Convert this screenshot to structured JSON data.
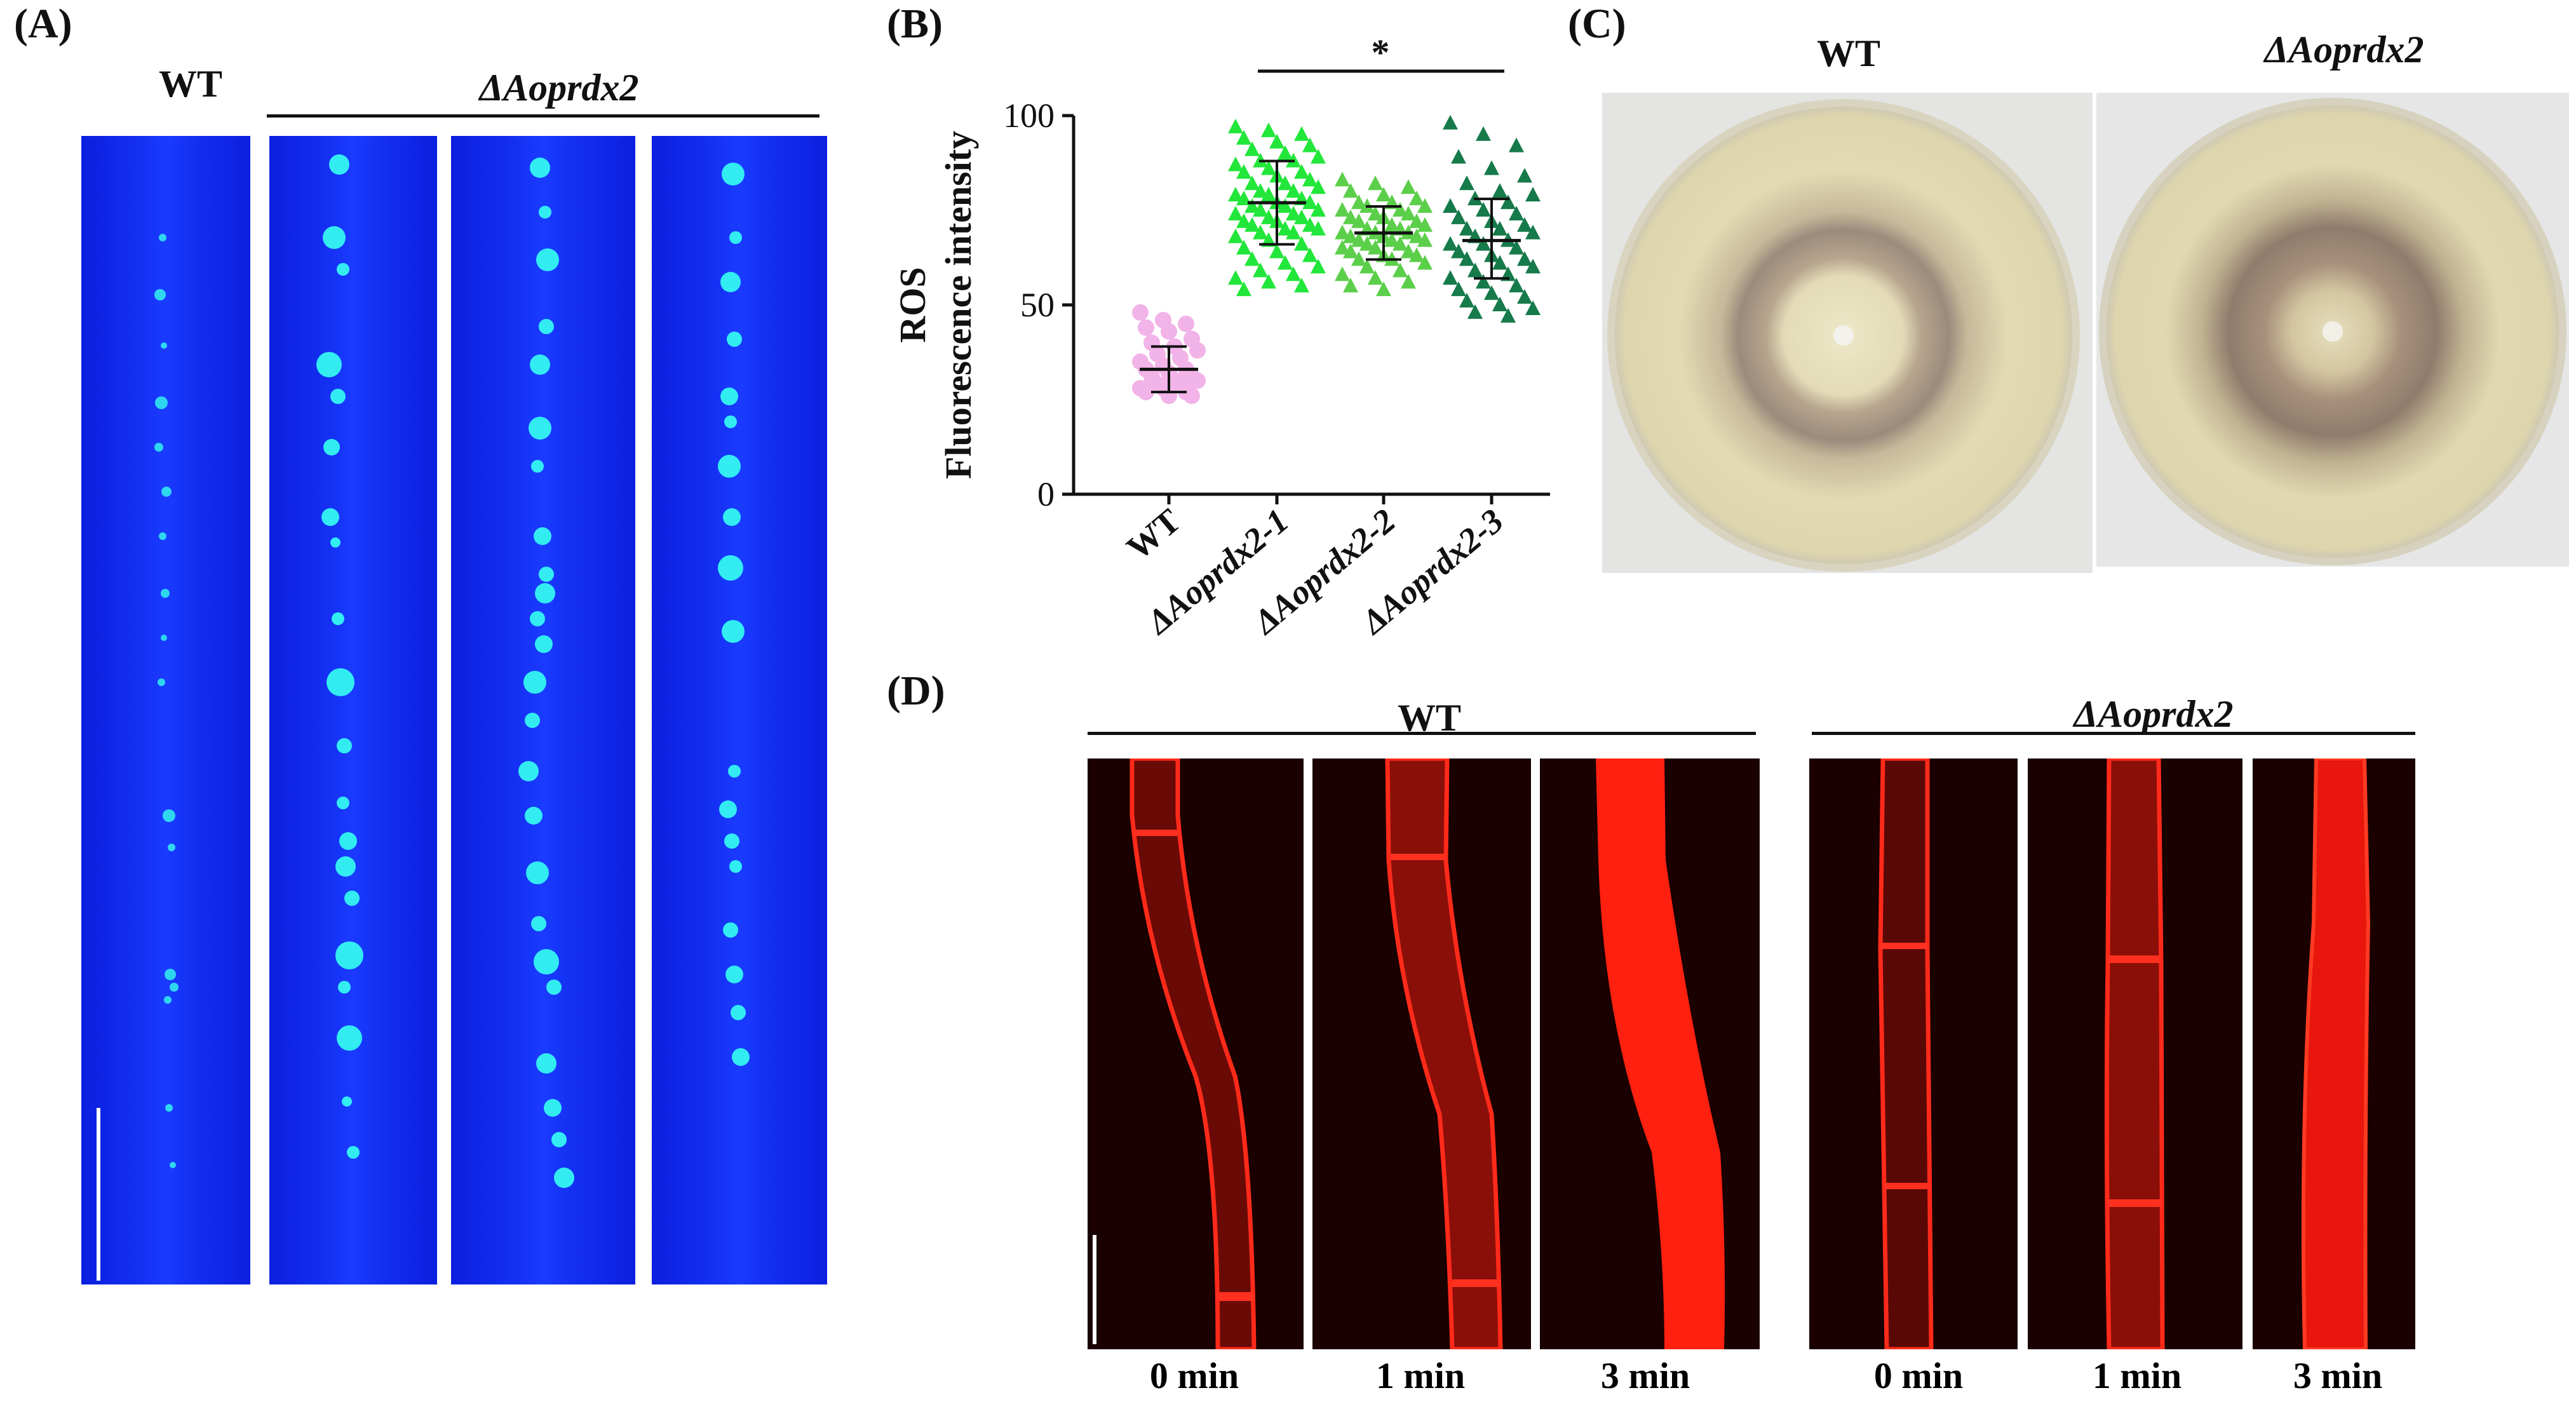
{
  "panels": {
    "A": {
      "letter": "(A)",
      "wt_label": "WT",
      "mutant_label": "ΔAoprdx2"
    },
    "B": {
      "letter": "(B)"
    },
    "C": {
      "letter": "(C)",
      "wt_label": "WT",
      "mutant_label": "ΔAoprdx2"
    },
    "D": {
      "letter": "(D)",
      "wt_label": "WT",
      "mutant_label": "ΔAoprdx2",
      "time_labels": [
        "0 min",
        "1 min",
        "3 min",
        "0 min",
        "1 min",
        "3 min"
      ]
    }
  },
  "colors": {
    "wt_points": "#f2b3e8",
    "mut1_points": "#22e63a",
    "mut2_points": "#5ccf4a",
    "mut3_points": "#167a4a",
    "blue_stain": "#1430f2",
    "red_stain": "#ff1a10"
  },
  "chart_data": {
    "type": "scatter",
    "ylabel": "ROS\nFluorescence intensity",
    "ylabel_line1": "ROS",
    "ylabel_line2": "Fluorescence intensity",
    "ylim": [
      0,
      100
    ],
    "yticks": [
      0,
      50,
      100
    ],
    "categories": [
      "WT",
      "ΔAoprdx2-1",
      "ΔAoprdx2-2",
      "ΔAoprdx2-3"
    ],
    "series": [
      {
        "category": "WT",
        "mean": 33,
        "sd_low": 27,
        "sd_high": 39,
        "values": [
          48,
          46,
          45,
          44,
          43,
          41,
          40,
          39,
          38,
          37,
          36,
          35,
          34,
          33,
          33,
          32,
          31,
          31,
          30,
          30,
          29,
          29,
          28,
          28,
          27,
          27,
          26,
          26
        ]
      },
      {
        "category": "ΔAoprdx2-1",
        "mean": 77,
        "sd_low": 66,
        "sd_high": 88,
        "values": [
          97,
          96,
          95,
          94,
          93,
          92,
          91,
          90,
          89,
          88,
          88,
          87,
          86,
          85,
          85,
          84,
          83,
          82,
          82,
          81,
          80,
          80,
          79,
          79,
          78,
          78,
          77,
          77,
          76,
          76,
          75,
          75,
          74,
          74,
          73,
          73,
          72,
          72,
          71,
          71,
          70,
          70,
          69,
          69,
          68,
          67,
          66,
          65,
          64,
          63,
          62,
          61,
          60,
          59,
          58,
          57,
          56,
          55,
          54
        ]
      },
      {
        "category": "ΔAoprdx2-2",
        "mean": 69,
        "sd_low": 62,
        "sd_high": 76,
        "values": [
          83,
          82,
          81,
          80,
          79,
          78,
          77,
          77,
          76,
          76,
          75,
          75,
          74,
          74,
          73,
          73,
          72,
          72,
          71,
          71,
          70,
          70,
          69,
          69,
          69,
          68,
          68,
          68,
          67,
          67,
          67,
          66,
          66,
          65,
          65,
          64,
          64,
          63,
          63,
          62,
          62,
          61,
          60,
          59,
          58,
          57,
          56,
          55,
          54
        ]
      },
      {
        "category": "ΔAoprdx2-3",
        "mean": 67,
        "sd_low": 57,
        "sd_high": 78,
        "values": [
          98,
          95,
          92,
          89,
          86,
          84,
          82,
          80,
          79,
          78,
          77,
          76,
          75,
          74,
          73,
          72,
          71,
          70,
          70,
          69,
          68,
          67,
          66,
          66,
          65,
          64,
          63,
          62,
          62,
          61,
          60,
          59,
          58,
          57,
          56,
          55,
          54,
          53,
          52,
          51,
          50,
          49,
          48,
          47
        ]
      }
    ],
    "significance": {
      "from": "ΔAoprdx2-1",
      "to": "ΔAoprdx2-3",
      "label": "*"
    },
    "grid": false
  }
}
